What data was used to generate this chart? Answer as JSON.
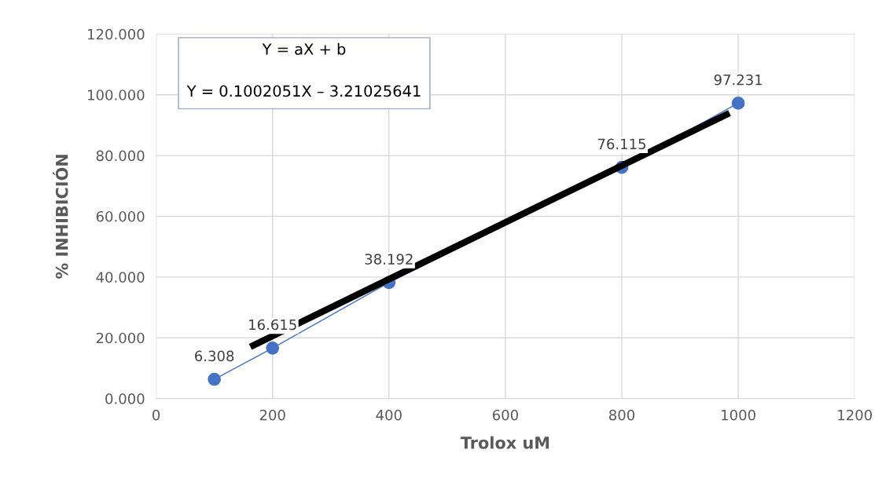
{
  "chart_data": {
    "type": "line",
    "xlabel": "Trolox uM",
    "ylabel": "% INHIBICIÓN",
    "xlim": [
      0,
      1200
    ],
    "xticks": [
      0,
      200,
      400,
      600,
      800,
      1000,
      1200
    ],
    "ylim": [
      0,
      120
    ],
    "yticks": [
      {
        "value": 0,
        "label": "0.000"
      },
      {
        "value": 20,
        "label": "20.000"
      },
      {
        "value": 40,
        "label": "40.000"
      },
      {
        "value": 60,
        "label": "60.000"
      },
      {
        "value": 80,
        "label": "80.000"
      },
      {
        "value": 100,
        "label": "100.000"
      },
      {
        "value": 120,
        "label": "120.000"
      }
    ],
    "grid": true,
    "marker": "circle",
    "line_style": "solid",
    "series": [
      {
        "color": "#4472c4",
        "x": [
          100,
          200,
          400,
          800,
          1000
        ],
        "values": [
          6.308,
          16.615,
          38.192,
          76.115,
          97.231
        ],
        "value_labels": [
          "6.308",
          "16.615",
          "38.192",
          "76.115",
          "97.231"
        ]
      },
      {
        "color": "#000000",
        "marker": "none",
        "x": [
          162,
          985
        ],
        "values": [
          17,
          94
        ]
      }
    ],
    "annotations": [
      "Y = aX + b",
      "Y = 0.1002051X – 3.21025641"
    ]
  }
}
